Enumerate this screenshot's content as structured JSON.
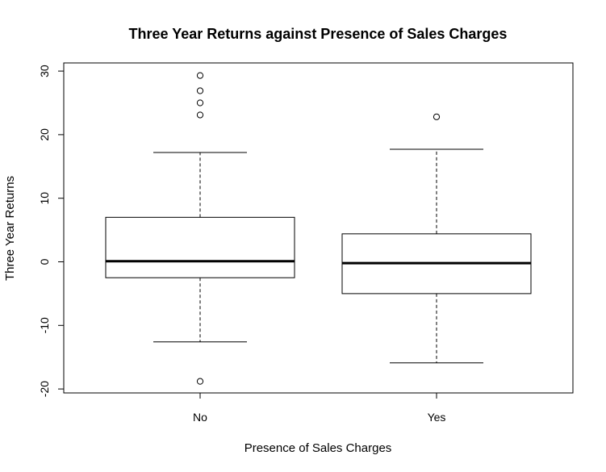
{
  "chart_data": {
    "type": "boxplot",
    "title": "Three Year Returns against Presence of Sales Charges",
    "xlabel": "Presence of Sales Charges",
    "ylabel": "Three Year Returns",
    "categories": [
      "No",
      "Yes"
    ],
    "ylim": [
      -20.5,
      31
    ],
    "yticks": [
      -20,
      -10,
      0,
      10,
      20,
      30
    ],
    "grid": false,
    "boxes": [
      {
        "category": "No",
        "whisker_low": -12.6,
        "q1": -2.5,
        "median": 0.1,
        "q3": 7.0,
        "whisker_high": 17.2,
        "outliers": [
          29.3,
          26.9,
          25.0,
          23.1,
          -18.8
        ]
      },
      {
        "category": "Yes",
        "whisker_low": -15.9,
        "q1": -5.0,
        "median": -0.2,
        "q3": 4.4,
        "whisker_high": 17.7,
        "outliers": [
          22.8
        ]
      }
    ]
  }
}
